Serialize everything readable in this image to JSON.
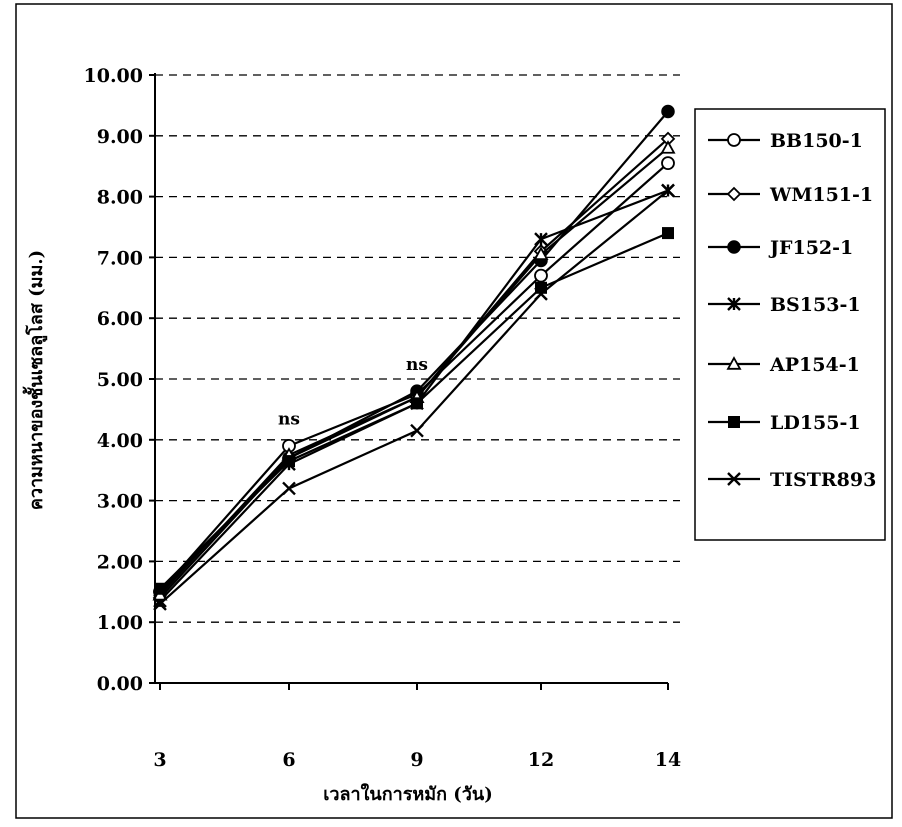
{
  "chart_data": {
    "type": "line",
    "title": "",
    "xlabel": "เวลาในการหมัก (วัน)",
    "ylabel": "ความหนาของชั้นเซลลูโลส (มม.)",
    "x": [
      3,
      6,
      9,
      12,
      14
    ],
    "x_tick_labels": [
      "3",
      "6",
      "9",
      "12",
      "14"
    ],
    "y_tick_labels": [
      "0.00",
      "1.00",
      "2.00",
      "3.00",
      "4.00",
      "5.00",
      "6.00",
      "7.00",
      "8.00",
      "9.00",
      "10.00"
    ],
    "ylim": [
      0,
      10
    ],
    "grid": "horizontal-dashed",
    "legend_position": "right",
    "annotations": [
      {
        "text": "ns",
        "x": 6,
        "y": 4.25
      },
      {
        "text": "ns",
        "x": 9,
        "y": 5.15
      }
    ],
    "series": [
      {
        "name": "BB150-1",
        "marker": "open-circle",
        "values": [
          1.5,
          3.9,
          4.75,
          6.7,
          8.55
        ]
      },
      {
        "name": "WM151-1",
        "marker": "open-diamond",
        "values": [
          1.4,
          3.7,
          4.7,
          7.1,
          8.95
        ]
      },
      {
        "name": "JF152-1",
        "marker": "filled-circle",
        "values": [
          1.5,
          3.7,
          4.8,
          6.95,
          9.4
        ]
      },
      {
        "name": "BS153-1",
        "marker": "star",
        "values": [
          1.35,
          3.6,
          4.6,
          7.3,
          8.1
        ]
      },
      {
        "name": "AP154-1",
        "marker": "open-triangle",
        "values": [
          1.45,
          3.75,
          4.7,
          7.05,
          8.8
        ]
      },
      {
        "name": "LD155-1",
        "marker": "filled-square",
        "values": [
          1.55,
          3.65,
          4.6,
          6.5,
          7.4
        ]
      },
      {
        "name": "TISTR893",
        "marker": "x-cross",
        "values": [
          1.3,
          3.2,
          4.15,
          6.4,
          8.1
        ]
      }
    ]
  }
}
